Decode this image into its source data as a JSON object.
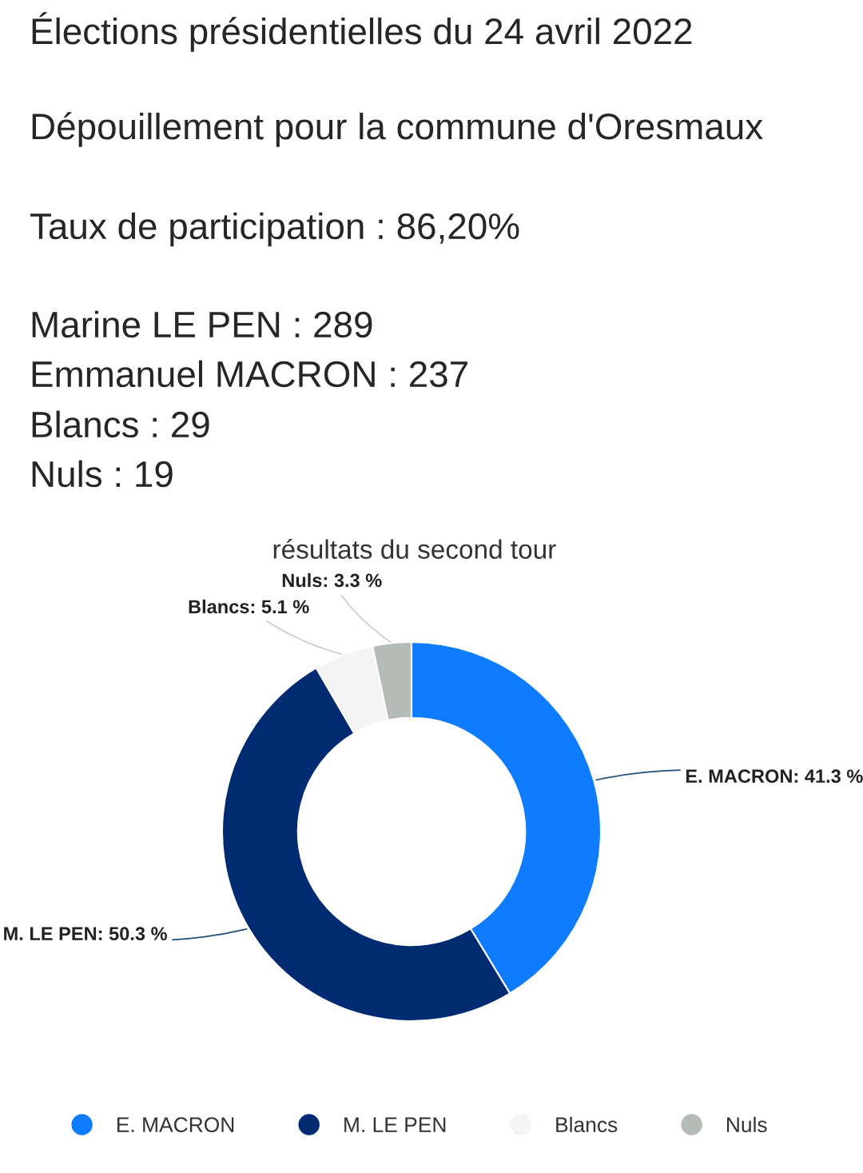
{
  "chart_data": {
    "type": "donut",
    "title": "Élections présidentielles du 24 avril 2022",
    "subtitle": "Dépouillement pour la commune d'Oresmaux",
    "annotations": [
      "Taux de participation : 86,20%",
      "Marine LE PEN : 289",
      "Emmanuel MACRON : 237",
      "Blancs : 29",
      "Nuls : 19",
      "résultats du second tour"
    ],
    "categories": [
      "E. MACRON",
      "M. LE PEN",
      "Blancs",
      "Nuls"
    ],
    "values": [
      41.3,
      50.3,
      5.1,
      3.3
    ],
    "colors": [
      "#0f7bff",
      "#002b73",
      "#f4f4f4",
      "#b5bbb7"
    ],
    "value_labels": [
      "E. MACRON: 41.3 %",
      "M. LE PEN: 50.3 %",
      "Blancs: 5.1 %",
      "Nuls: 3.3 %"
    ],
    "legend": "bottom"
  }
}
